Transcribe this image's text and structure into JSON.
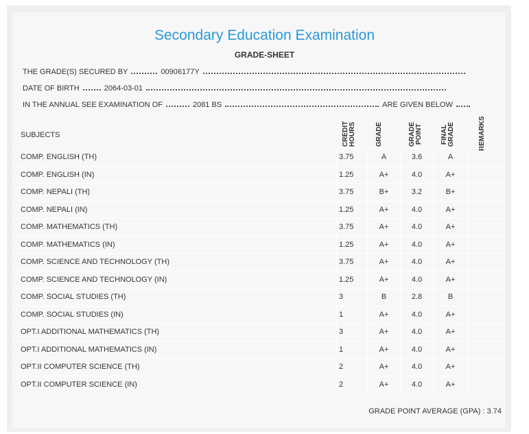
{
  "header": {
    "title": "Secondary Education Examination",
    "subtitle": "GRADE-SHEET"
  },
  "info": [
    {
      "label": "THE GRADE(S) SECURED BY",
      "value": "00906177Y"
    },
    {
      "label": "DATE OF BIRTH",
      "value": "2064-03-01"
    },
    {
      "label": "IN THE ANNUAL SEE EXAMINATION OF",
      "value": "2081 BS",
      "suffix": "ARE GIVEN BELOW"
    }
  ],
  "table": {
    "headers": [
      "SUBJECTS",
      "CREDIT HOURS",
      "GRADE",
      "GRADE POINT",
      "FINAL GRADE",
      "REMARKS"
    ],
    "rows": [
      [
        "COMP. ENGLISH (TH)",
        "3.75",
        "A",
        "3.6",
        "A"
      ],
      [
        "COMP. ENGLISH (IN)",
        "1.25",
        "A+",
        "4.0",
        "A+"
      ],
      [
        "COMP. NEPALI (TH)",
        "3.75",
        "B+",
        "3.2",
        "B+"
      ],
      [
        "COMP. NEPALI (IN)",
        "1.25",
        "A+",
        "4.0",
        "A+"
      ],
      [
        "COMP. MATHEMATICS (TH)",
        "3.75",
        "A+",
        "4.0",
        "A+"
      ],
      [
        "COMP. MATHEMATICS (IN)",
        "1.25",
        "A+",
        "4.0",
        "A+"
      ],
      [
        "COMP. SCIENCE AND TECHNOLOGY (TH)",
        "3.75",
        "A+",
        "4.0",
        "A+"
      ],
      [
        "COMP. SCIENCE AND TECHNOLOGY (IN)",
        "1.25",
        "A+",
        "4.0",
        "A+"
      ],
      [
        "COMP. SOCIAL STUDIES (TH)",
        "3",
        "B",
        "2.8",
        "B"
      ],
      [
        "COMP. SOCIAL STUDIES (IN)",
        "1",
        "A+",
        "4.0",
        "A+"
      ],
      [
        "OPT.I ADDITIONAL MATHEMATICS (TH)",
        "3",
        "A+",
        "4.0",
        "A+"
      ],
      [
        "OPT.I ADDITIONAL MATHEMATICS (IN)",
        "1",
        "A+",
        "4.0",
        "A+"
      ],
      [
        "OPT.II COMPUTER SCIENCE (TH)",
        "2",
        "A+",
        "4.0",
        "A+"
      ],
      [
        "OPT.II COMPUTER SCIENCE (IN)",
        "2",
        "A+",
        "4.0",
        "A+"
      ]
    ]
  },
  "footer": {
    "gpa_label": "GRADE POINT AVERAGE (GPA) :",
    "gpa": "3.74"
  }
}
